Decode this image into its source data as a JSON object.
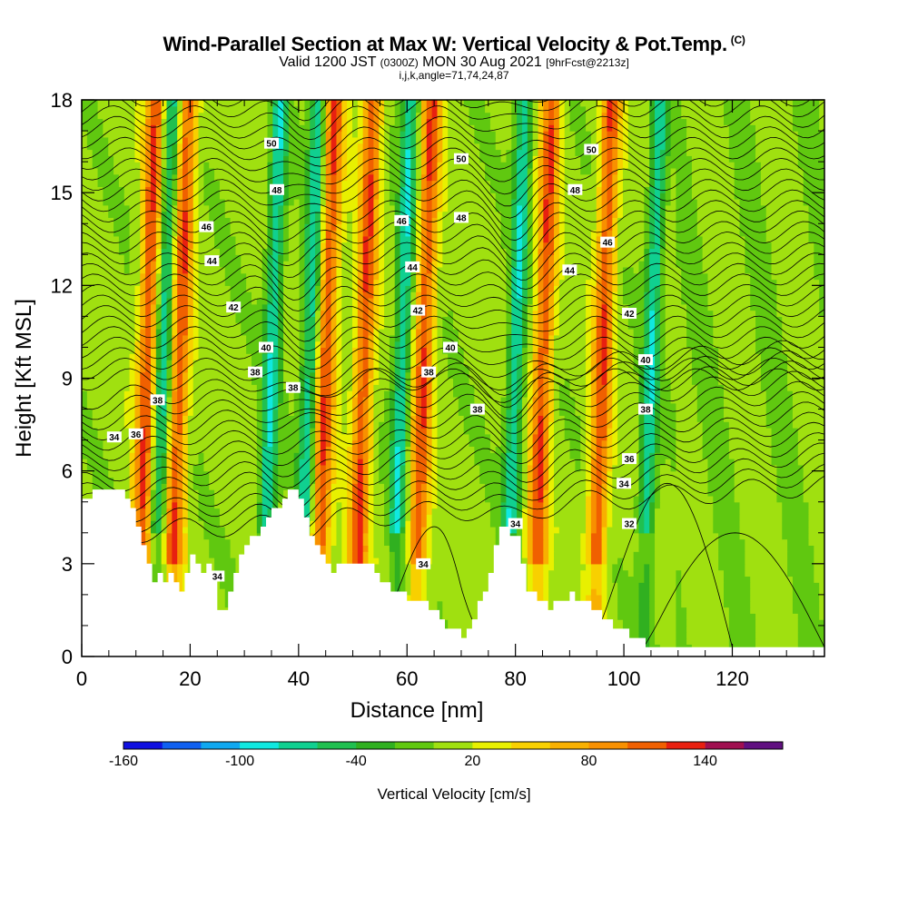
{
  "header": {
    "title": "Wind-Parallel Section at Max W: Vertical Velocity & Pot.Temp.",
    "title_tag": "(C)",
    "subtitle_main": "Valid 1200 JST",
    "subtitle_zulu": "(0300Z)",
    "subtitle_date": "MON 30 Aug 2021",
    "subtitle_fcst": "[9hrFcst@2213z]",
    "subtitle2": "i,j,k,angle=71,74,24,87"
  },
  "chart_data": {
    "type": "heatmap",
    "xlabel": "Distance [nm]",
    "ylabel": "Height [Kft MSL]",
    "xlim": [
      0,
      137
    ],
    "ylim": [
      0,
      18
    ],
    "x_ticks": [
      0,
      20,
      40,
      60,
      80,
      100,
      120
    ],
    "y_ticks": [
      0,
      3,
      6,
      9,
      12,
      15,
      18
    ],
    "colorbar": {
      "title": "Vertical Velocity [cm/s]",
      "labeled_ticks": [
        -160,
        -100,
        -40,
        20,
        80,
        140
      ],
      "levels": [
        -160,
        -140,
        -120,
        -100,
        -80,
        -60,
        -40,
        -20,
        0,
        20,
        40,
        60,
        80,
        100,
        120,
        140,
        160
      ],
      "colors": [
        "#1010e0",
        "#1060f0",
        "#10a8f0",
        "#10e8e0",
        "#10d090",
        "#20c050",
        "#30b020",
        "#60c810",
        "#a0e010",
        "#e8f000",
        "#f8d000",
        "#f8b000",
        "#f89000",
        "#f06000",
        "#e82010",
        "#a01050",
        "#601080"
      ]
    },
    "terrain_profile": [
      [
        0,
        5.0
      ],
      [
        2,
        5.3
      ],
      [
        7,
        5.3
      ],
      [
        8,
        5.1
      ],
      [
        9,
        4.8
      ],
      [
        10,
        4.2
      ],
      [
        11,
        3.6
      ],
      [
        12,
        3.0
      ],
      [
        13,
        2.3
      ],
      [
        14,
        2.8
      ],
      [
        15,
        2.4
      ],
      [
        16,
        2.6
      ],
      [
        17,
        2.4
      ],
      [
        18,
        2.0
      ],
      [
        19,
        2.8
      ],
      [
        20,
        3.4
      ],
      [
        21,
        3.0
      ],
      [
        22,
        2.8
      ],
      [
        23,
        3.0
      ],
      [
        24,
        2.8
      ],
      [
        25,
        1.4
      ],
      [
        26,
        1.5
      ],
      [
        27,
        2.2
      ],
      [
        28,
        2.8
      ],
      [
        30,
        3.6
      ],
      [
        32,
        4.0
      ],
      [
        34,
        4.6
      ],
      [
        36,
        4.9
      ],
      [
        38,
        5.4
      ],
      [
        40,
        5.1
      ],
      [
        41,
        4.6
      ],
      [
        42,
        3.8
      ],
      [
        44,
        3.2
      ],
      [
        46,
        2.8
      ],
      [
        48,
        2.9
      ],
      [
        50,
        3.0
      ],
      [
        53,
        3.0
      ],
      [
        54,
        2.6
      ],
      [
        56,
        2.4
      ],
      [
        58,
        2.0
      ],
      [
        60,
        1.9
      ],
      [
        62,
        1.8
      ],
      [
        64,
        1.6
      ],
      [
        66,
        1.2
      ],
      [
        68,
        0.8
      ],
      [
        70,
        0.7
      ],
      [
        72,
        1.2
      ],
      [
        74,
        2.2
      ],
      [
        75,
        2.8
      ],
      [
        76,
        3.5
      ],
      [
        77,
        4.2
      ],
      [
        78,
        4.2
      ],
      [
        80,
        3.8
      ],
      [
        81,
        3.0
      ],
      [
        82,
        2.2
      ],
      [
        84,
        1.8
      ],
      [
        86,
        1.6
      ],
      [
        88,
        1.8
      ],
      [
        90,
        2.0
      ],
      [
        92,
        1.8
      ],
      [
        94,
        1.6
      ],
      [
        96,
        1.2
      ],
      [
        98,
        1.0
      ],
      [
        100,
        0.8
      ],
      [
        102,
        0.6
      ],
      [
        104,
        0.4
      ],
      [
        106,
        0.3
      ],
      [
        110,
        0.3
      ],
      [
        137,
        0.3
      ]
    ],
    "updraft_bands_x": [
      11,
      17,
      44,
      51,
      62,
      84,
      95
    ],
    "downdraft_bands_x": [
      14,
      34,
      41,
      58,
      79,
      104
    ],
    "contour_labels": [
      {
        "text": "50",
        "x": 35,
        "y": 16.6
      },
      {
        "text": "50",
        "x": 70,
        "y": 16.1
      },
      {
        "text": "50",
        "x": 94,
        "y": 16.4
      },
      {
        "text": "48",
        "x": 36,
        "y": 15.1
      },
      {
        "text": "48",
        "x": 70,
        "y": 14.2
      },
      {
        "text": "48",
        "x": 91,
        "y": 15.1
      },
      {
        "text": "46",
        "x": 23,
        "y": 13.9
      },
      {
        "text": "46",
        "x": 59,
        "y": 14.1
      },
      {
        "text": "46",
        "x": 97,
        "y": 13.4
      },
      {
        "text": "44",
        "x": 24,
        "y": 12.8
      },
      {
        "text": "44",
        "x": 61,
        "y": 12.6
      },
      {
        "text": "44",
        "x": 90,
        "y": 12.5
      },
      {
        "text": "42",
        "x": 28,
        "y": 11.3
      },
      {
        "text": "42",
        "x": 62,
        "y": 11.2
      },
      {
        "text": "42",
        "x": 101,
        "y": 11.1
      },
      {
        "text": "40",
        "x": 34,
        "y": 10.0
      },
      {
        "text": "40",
        "x": 68,
        "y": 10.0
      },
      {
        "text": "40",
        "x": 104,
        "y": 9.6
      },
      {
        "text": "38",
        "x": 32,
        "y": 9.2
      },
      {
        "text": "38",
        "x": 39,
        "y": 8.7
      },
      {
        "text": "38",
        "x": 64,
        "y": 9.2
      },
      {
        "text": "38",
        "x": 14,
        "y": 8.3
      },
      {
        "text": "38",
        "x": 73,
        "y": 8.0
      },
      {
        "text": "38",
        "x": 104,
        "y": 8.0
      },
      {
        "text": "36",
        "x": 10,
        "y": 7.2
      },
      {
        "text": "36",
        "x": 101,
        "y": 6.4
      },
      {
        "text": "34",
        "x": 6,
        "y": 7.1
      },
      {
        "text": "34",
        "x": 100,
        "y": 5.6
      },
      {
        "text": "34",
        "x": 25,
        "y": 2.6
      },
      {
        "text": "34",
        "x": 63,
        "y": 3.0
      },
      {
        "text": "34",
        "x": 80,
        "y": 4.3
      },
      {
        "text": "32",
        "x": 101,
        "y": 4.3
      }
    ]
  }
}
